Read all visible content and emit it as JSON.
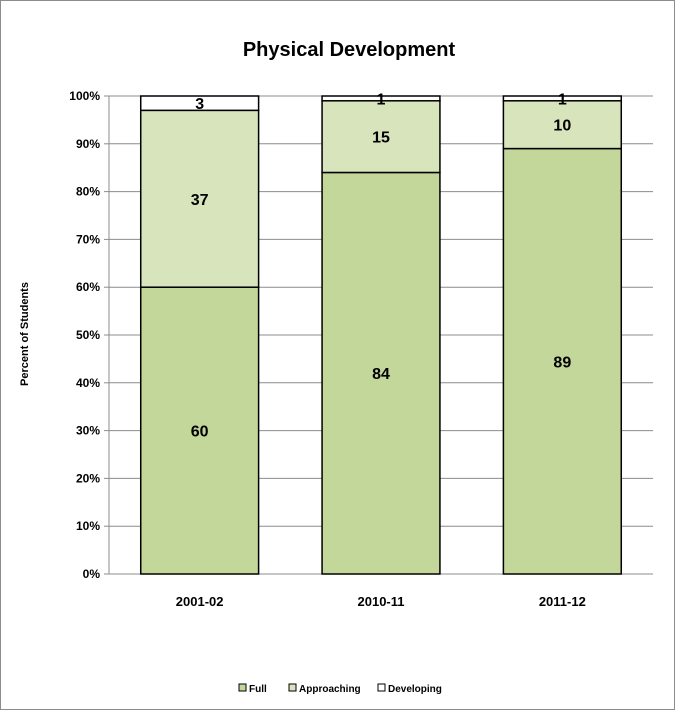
{
  "chart_data": {
    "type": "bar",
    "stacked": true,
    "title": "Physical Development",
    "ylabel": "Percent of Students",
    "xlabel": "",
    "ylim": [
      0,
      100
    ],
    "y_ticks": [
      0,
      10,
      20,
      30,
      40,
      50,
      60,
      70,
      80,
      90,
      100
    ],
    "y_tick_labels": [
      "0%",
      "10%",
      "20%",
      "30%",
      "40%",
      "50%",
      "60%",
      "70%",
      "80%",
      "90%",
      "100%"
    ],
    "grid": true,
    "legend_position": "bottom",
    "categories": [
      "2001-02",
      "2010-11",
      "2011-12"
    ],
    "series": [
      {
        "name": "Full",
        "values": [
          60,
          84,
          89
        ],
        "color": "#c4d79b"
      },
      {
        "name": "Approaching",
        "values": [
          37,
          15,
          10
        ],
        "color": "#d8e4bc"
      },
      {
        "name": "Developing",
        "values": [
          3,
          1,
          1
        ],
        "color": "#ffffff"
      }
    ]
  }
}
